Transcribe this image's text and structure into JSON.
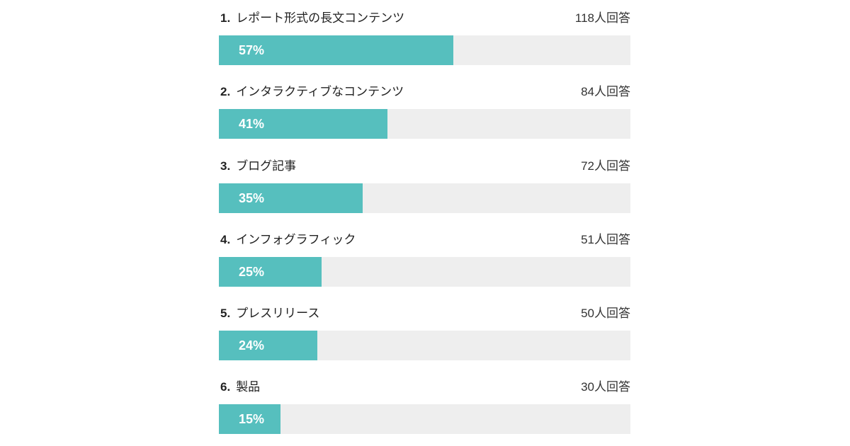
{
  "chart_data": {
    "type": "bar",
    "orientation": "horizontal",
    "xlim": [
      0,
      100
    ],
    "color": "#56bfbe",
    "track_color": "#eeeeee",
    "items": [
      {
        "rank": "1.",
        "label": "レポート形式の長文コンテンツ",
        "count": "118人回答",
        "value": 57,
        "pct": "57%"
      },
      {
        "rank": "2.",
        "label": "インタラクティブなコンテンツ",
        "count": "84人回答",
        "value": 41,
        "pct": "41%"
      },
      {
        "rank": "3.",
        "label": "ブログ記事",
        "count": "72人回答",
        "value": 35,
        "pct": "35%"
      },
      {
        "rank": "4.",
        "label": "インフォグラフィック",
        "count": "51人回答",
        "value": 25,
        "pct": "25%"
      },
      {
        "rank": "5.",
        "label": "プレスリリース",
        "count": "50人回答",
        "value": 24,
        "pct": "24%"
      },
      {
        "rank": "6.",
        "label": "製品",
        "count": "30人回答",
        "value": 15,
        "pct": "15%"
      }
    ]
  }
}
